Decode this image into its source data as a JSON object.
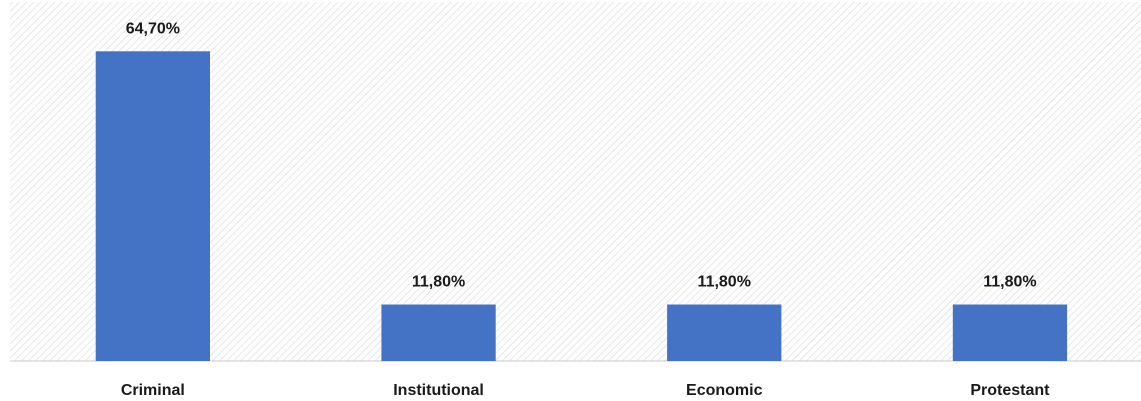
{
  "chart_data": {
    "type": "bar",
    "categories": [
      "Criminal",
      "Institutional",
      "Economic",
      "Protestant"
    ],
    "values": [
      64.7,
      11.8,
      11.8,
      11.8
    ],
    "value_labels": [
      "64,70%",
      "11,80%",
      "11,80%",
      "11,80%"
    ],
    "color": "#4472c4",
    "ylim": [
      0,
      75
    ]
  }
}
